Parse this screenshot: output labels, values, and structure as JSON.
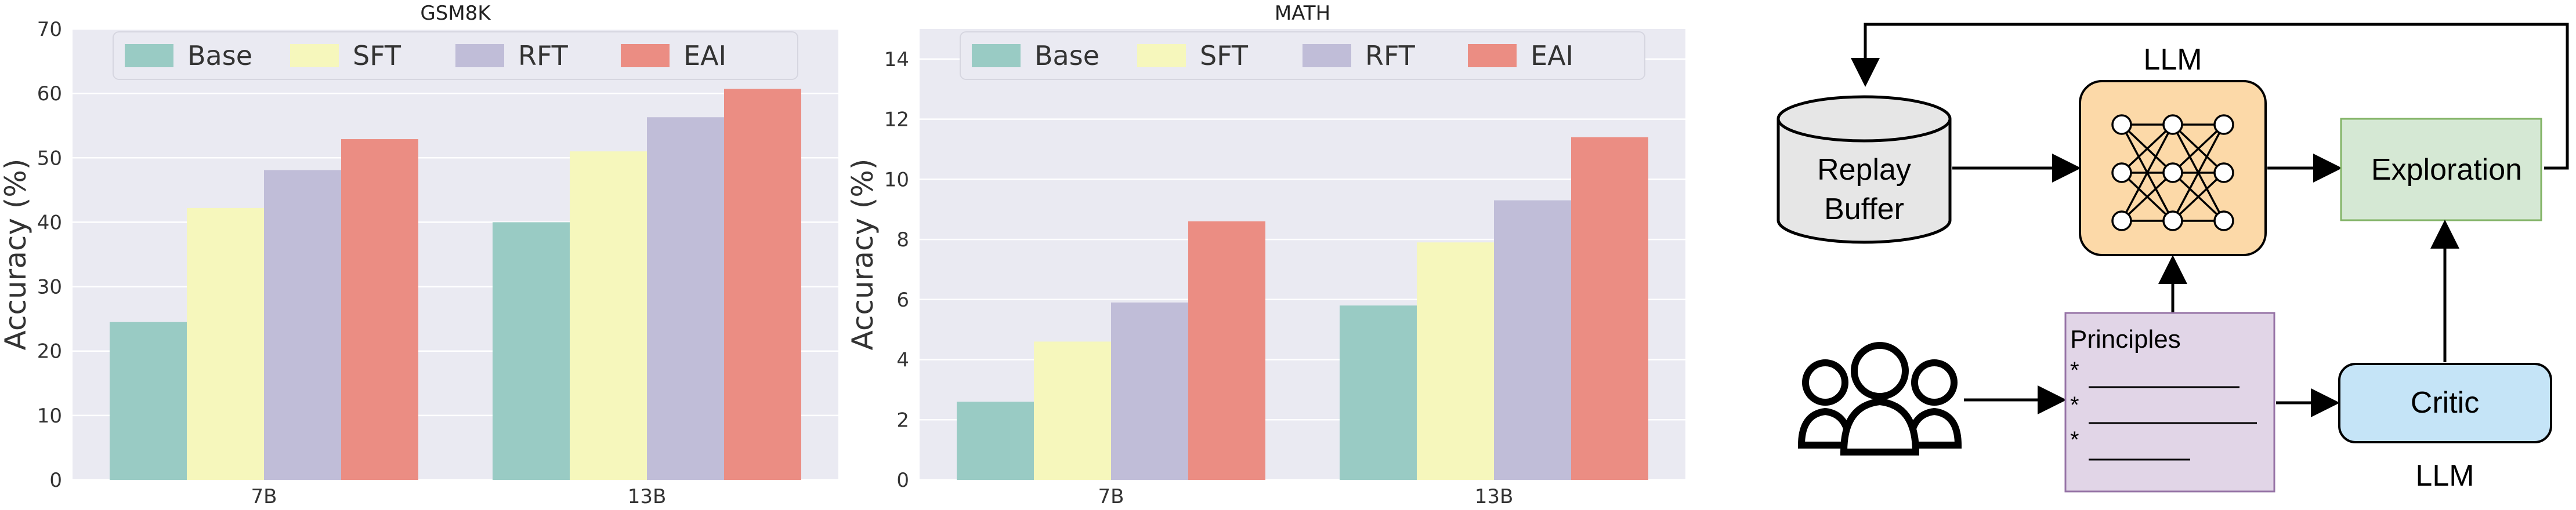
{
  "chart_data": [
    {
      "type": "bar",
      "title": "GSM8K",
      "xlabel": "",
      "ylabel": "Accuracy (%)",
      "categories": [
        "7B",
        "13B"
      ],
      "ylim": [
        0,
        70
      ],
      "yticks": [
        0,
        10,
        20,
        30,
        40,
        50,
        60,
        70
      ],
      "grid": true,
      "legend_position": "top",
      "series": [
        {
          "name": "Base",
          "color": "#99cbc4",
          "values": [
            24.5,
            40.0
          ]
        },
        {
          "name": "SFT",
          "color": "#f6f7bc",
          "values": [
            42.2,
            51.0
          ]
        },
        {
          "name": "RFT",
          "color": "#c0bdd8",
          "values": [
            48.1,
            56.3
          ]
        },
        {
          "name": "EAI",
          "color": "#eb8d83",
          "values": [
            52.9,
            60.7
          ]
        }
      ]
    },
    {
      "type": "bar",
      "title": "MATH",
      "xlabel": "",
      "ylabel": "Accuracy (%)",
      "categories": [
        "7B",
        "13B"
      ],
      "ylim": [
        0,
        15
      ],
      "yticks": [
        0,
        2,
        4,
        6,
        8,
        10,
        12,
        14
      ],
      "grid": true,
      "legend_position": "top",
      "series": [
        {
          "name": "Base",
          "color": "#99cbc4",
          "values": [
            2.6,
            5.8
          ]
        },
        {
          "name": "SFT",
          "color": "#f6f7bc",
          "values": [
            4.6,
            7.9
          ]
        },
        {
          "name": "RFT",
          "color": "#c0bdd8",
          "values": [
            5.9,
            9.3
          ]
        },
        {
          "name": "EAI",
          "color": "#eb8d83",
          "values": [
            8.6,
            11.4
          ]
        }
      ]
    }
  ],
  "diagram": {
    "replay_buffer": {
      "line1": "Replay",
      "line2": "Buffer"
    },
    "llm_top_label": "LLM",
    "exploration_label": "Exploration",
    "principles": {
      "title": "Principles",
      "bullet": "*"
    },
    "critic_label": "Critic",
    "llm_bottom_label": "LLM",
    "colors": {
      "llm_box": "#fcd9a8",
      "exploration_box": "#d5e8d4",
      "principles_box": "#e1d5e7",
      "critic_box": "#c5e4f7",
      "buffer": "#e6e6e6"
    }
  }
}
